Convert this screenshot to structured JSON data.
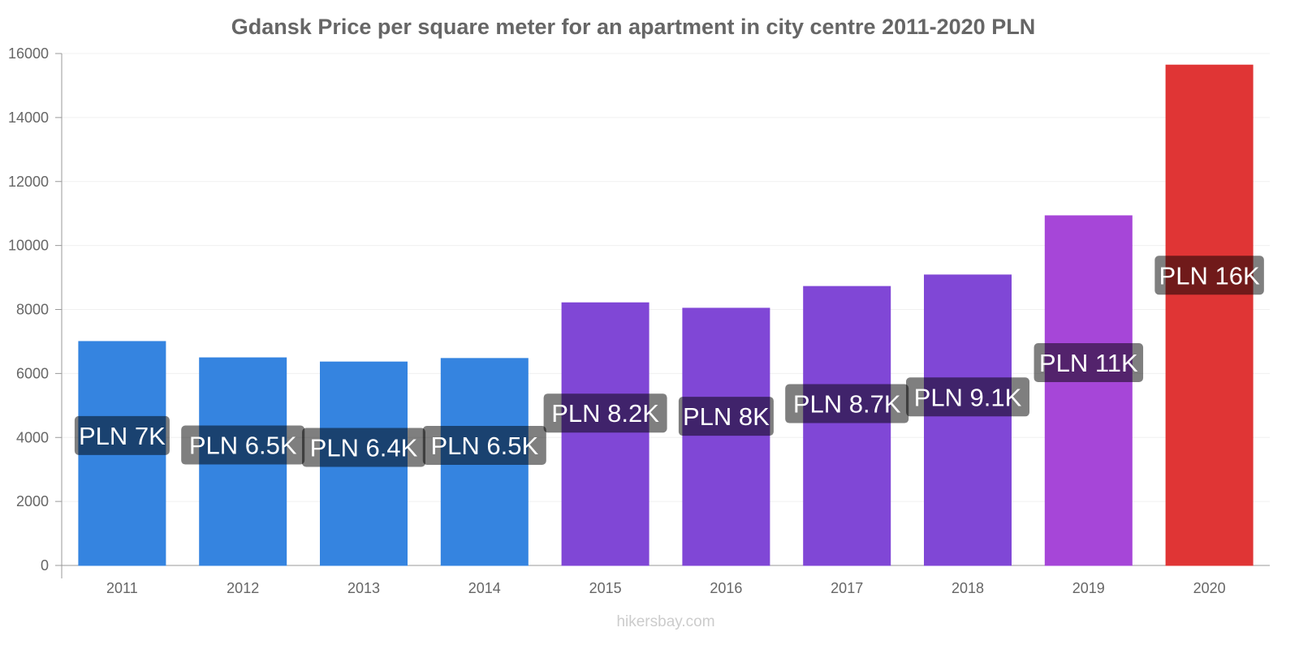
{
  "chart_data": {
    "type": "bar",
    "title": "Gdansk Price per square meter for an apartment in city centre 2011-2020 PLN",
    "xlabel": "",
    "ylabel": "",
    "ylim": [
      0,
      16000
    ],
    "yticks": [
      "0",
      "2000",
      "4000",
      "6000",
      "8000",
      "10000",
      "12000",
      "14000",
      "16000"
    ],
    "categories": [
      "2011",
      "2012",
      "2013",
      "2014",
      "2015",
      "2016",
      "2017",
      "2018",
      "2019",
      "2020"
    ],
    "values": [
      7000,
      6490,
      6360,
      6470,
      8210,
      8040,
      8720,
      9080,
      10930,
      15640
    ],
    "data_labels": [
      "PLN 7K",
      "PLN 6.5K",
      "PLN 6.4K",
      "PLN 6.5K",
      "PLN 8.2K",
      "PLN 8K",
      "PLN 8.7K",
      "PLN 9.1K",
      "PLN 11K",
      "PLN 16K"
    ],
    "colors": [
      "#3584e0",
      "#3584e0",
      "#3584e0",
      "#3584e0",
      "#8047d6",
      "#8047d6",
      "#8047d6",
      "#8047d6",
      "#a646d8",
      "#e03535"
    ],
    "grid": true,
    "legend": "none"
  },
  "watermark": "hikersbay.com"
}
